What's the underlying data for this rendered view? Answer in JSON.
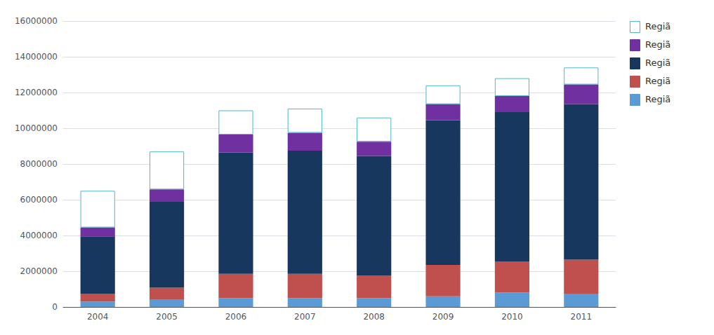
{
  "chart_data": {
    "type": "bar",
    "categories": [
      "2004",
      "2005",
      "2006",
      "2007",
      "2008",
      "2009",
      "2010",
      "2011"
    ],
    "series": [
      {
        "name": "Regiã",
        "color": "#5b9bd5",
        "values": [
          300000,
          400000,
          500000,
          500000,
          500000,
          600000,
          800000,
          750000
        ]
      },
      {
        "name": "Regiã",
        "color": "#c0504d",
        "values": [
          450000,
          680000,
          1350000,
          1350000,
          1250000,
          1750000,
          1750000,
          1900000
        ]
      },
      {
        "name": "Regiã",
        "color": "#17375e",
        "values": [
          3200000,
          4800000,
          6800000,
          6900000,
          6700000,
          8100000,
          8350000,
          8700000
        ]
      },
      {
        "name": "Regiã",
        "color": "#7030a0",
        "values": [
          500000,
          700000,
          1000000,
          1000000,
          800000,
          900000,
          900000,
          1100000
        ]
      },
      {
        "name": "Regiã",
        "color": "#ffffff",
        "values": [
          2050000,
          2120000,
          1350000,
          1350000,
          1350000,
          1050000,
          1000000,
          950000
        ]
      }
    ],
    "stacked": true,
    "ylim": [
      0,
      16000000
    ],
    "yticks": [
      0,
      2000000,
      4000000,
      6000000,
      8000000,
      10000000,
      12000000,
      14000000,
      16000000
    ],
    "grid": true,
    "legend": "right"
  }
}
